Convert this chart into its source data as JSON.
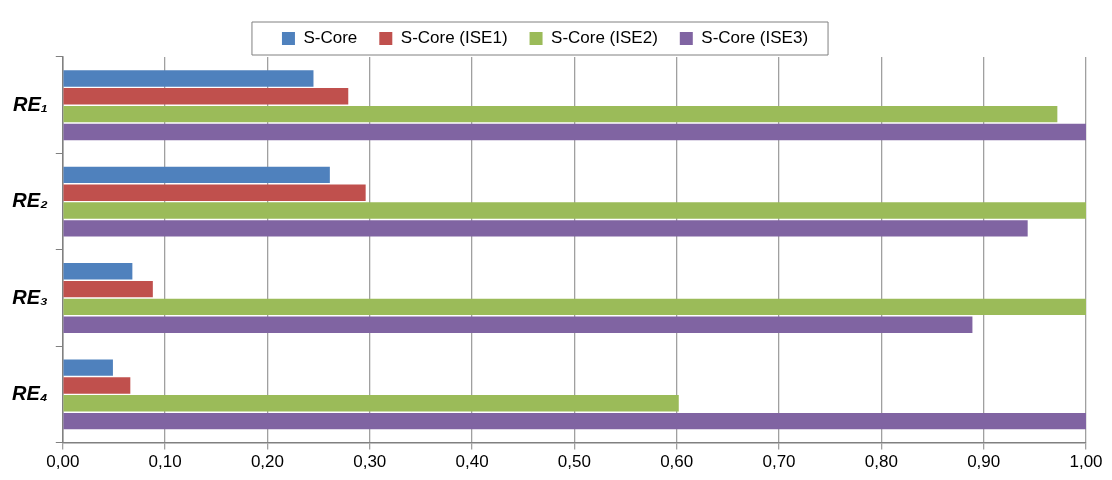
{
  "chart_data": {
    "type": "bar",
    "orientation": "horizontal",
    "categories": [
      "RE₁",
      "RE₂",
      "RE₃",
      "RE₄"
    ],
    "series": [
      {
        "name": "S-Core",
        "color": "#4f81bd",
        "values": [
          0.245,
          0.261,
          0.068,
          0.049
        ]
      },
      {
        "name": "S-Core (ISE1)",
        "color": "#c0504d",
        "values": [
          0.279,
          0.296,
          0.088,
          0.066
        ]
      },
      {
        "name": "S-Core (ISE2)",
        "color": "#9bbb59",
        "values": [
          0.972,
          1.0,
          1.0,
          0.602
        ]
      },
      {
        "name": "S-Core (ISE3)",
        "color": "#8064a2",
        "values": [
          1.0,
          0.943,
          0.889,
          1.0
        ]
      }
    ],
    "xlim": [
      0,
      1
    ],
    "xticks": [
      {
        "value": 0,
        "label": "0,00"
      },
      {
        "value": 0.1,
        "label": "0,10"
      },
      {
        "value": 0.2,
        "label": "0,20"
      },
      {
        "value": 0.3,
        "label": "0,30"
      },
      {
        "value": 0.4,
        "label": "0,40"
      },
      {
        "value": 0.5,
        "label": "0,50"
      },
      {
        "value": 0.6,
        "label": "0,60"
      },
      {
        "value": 0.7,
        "label": "0,70"
      },
      {
        "value": 0.8,
        "label": "0,80"
      },
      {
        "value": 0.9,
        "label": "0,90"
      },
      {
        "value": 1,
        "label": "1,00"
      }
    ],
    "grid": "x",
    "legend": "top"
  }
}
